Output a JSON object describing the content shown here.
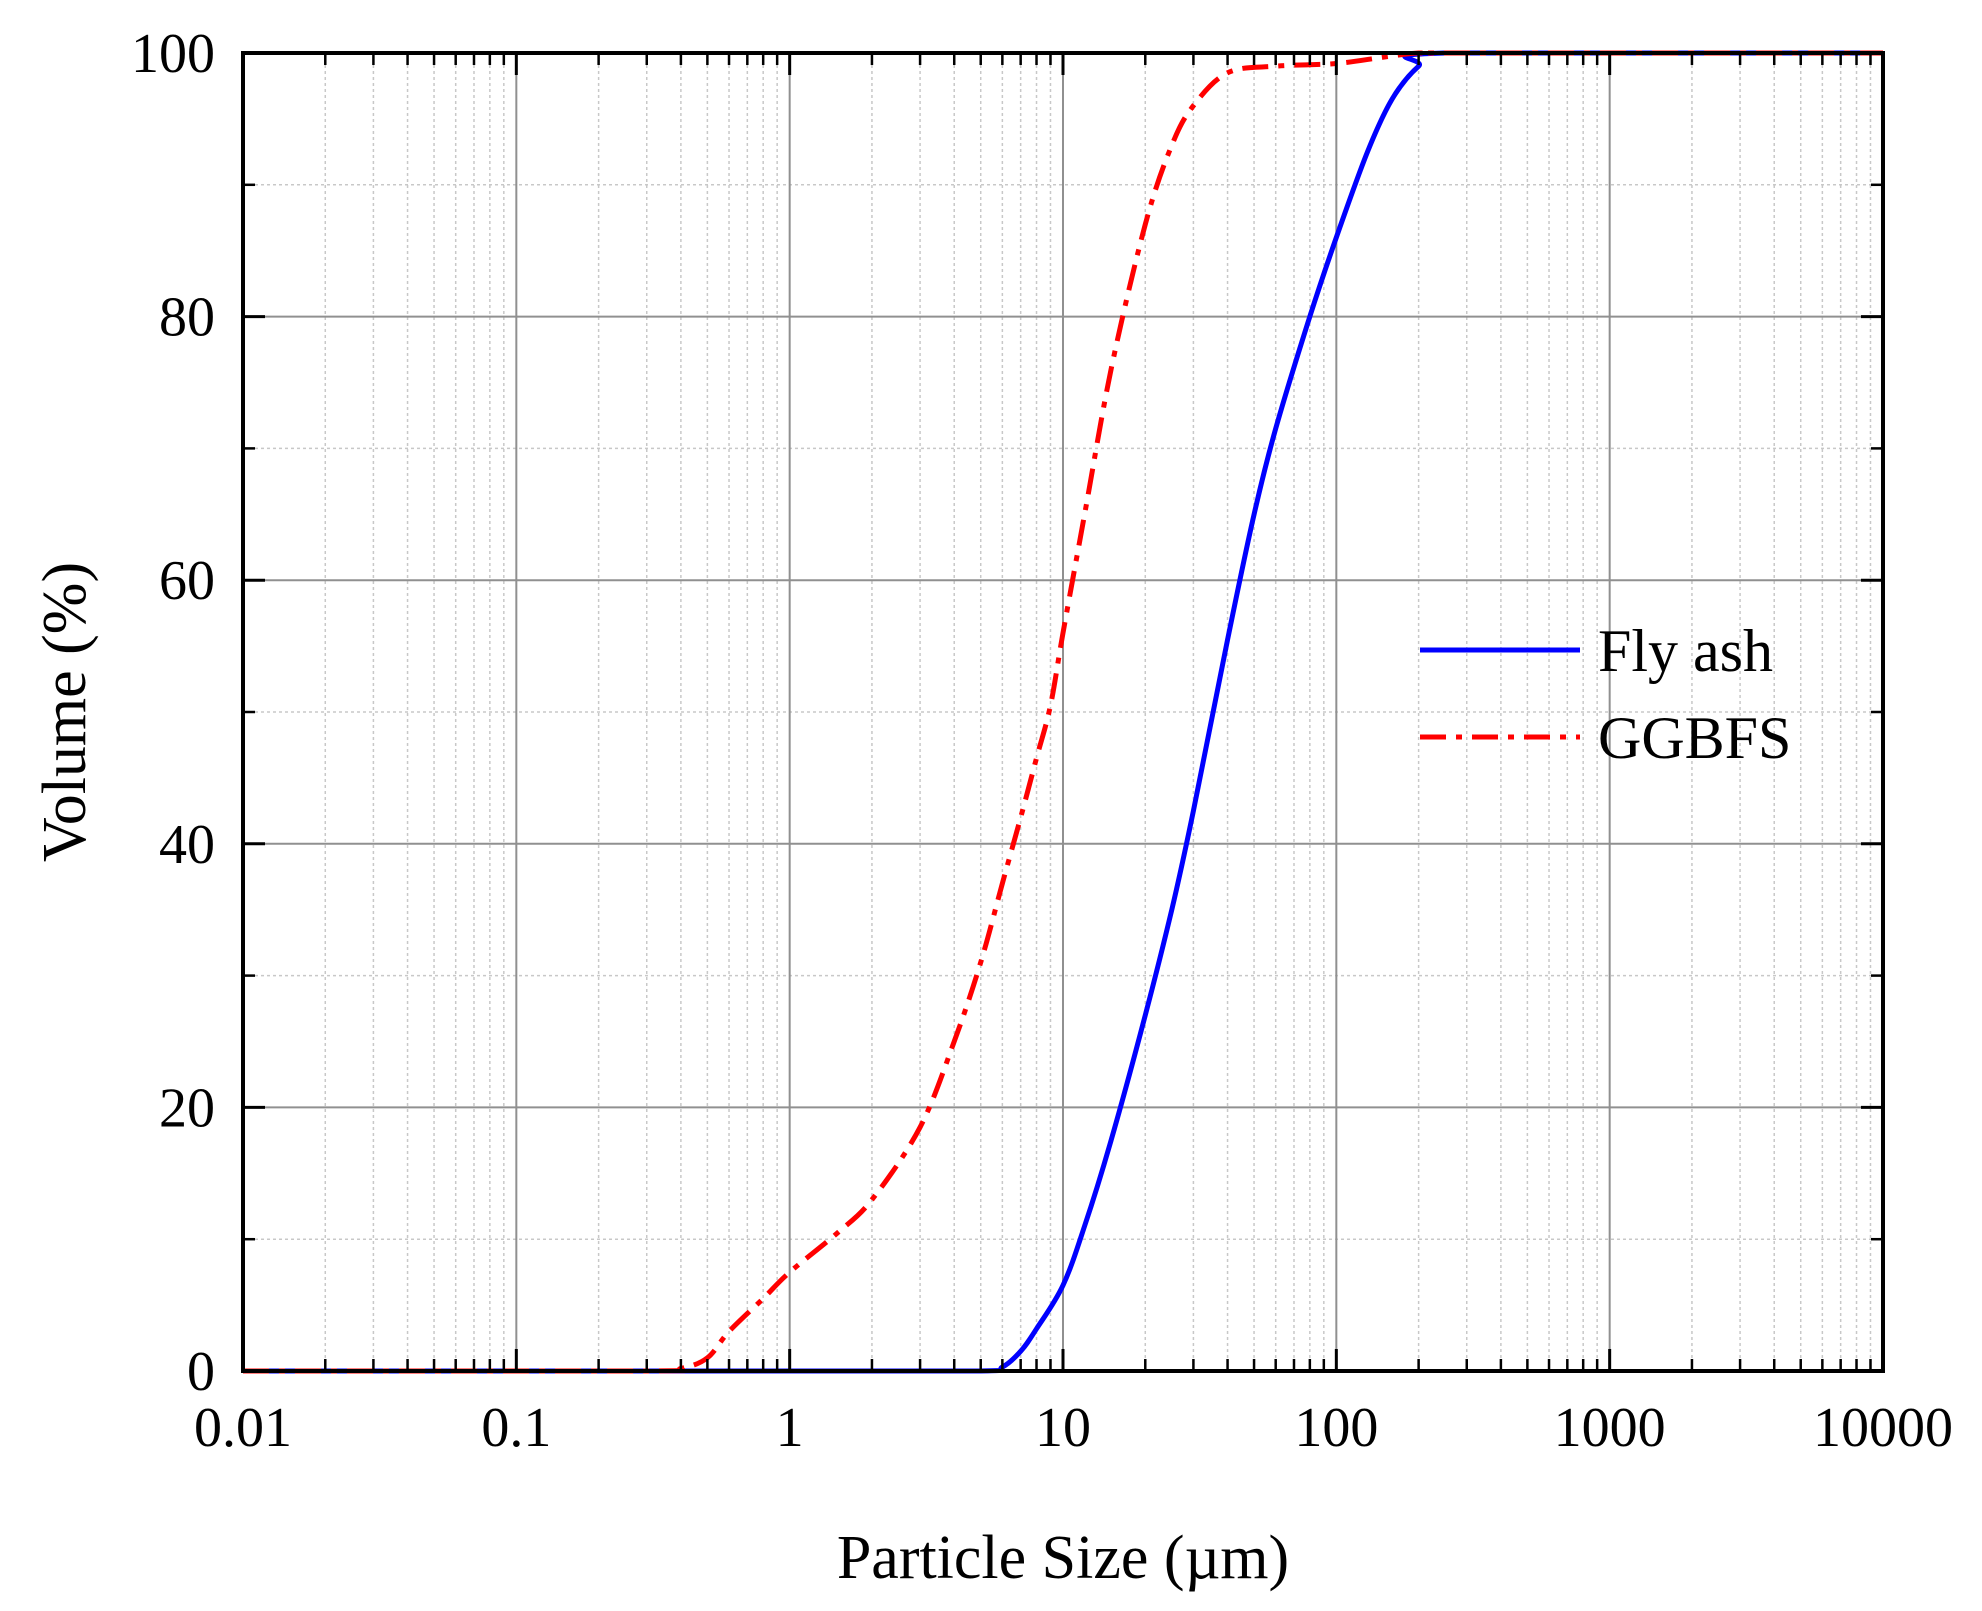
{
  "chart_data": {
    "type": "line",
    "title": "",
    "xlabel": "Particle Size (µm)",
    "ylabel": "Volume (%)",
    "xscale": "log",
    "xlim": [
      0.01,
      10000
    ],
    "ylim": [
      0,
      100
    ],
    "x_ticks": [
      0.01,
      0.1,
      1,
      10,
      100,
      1000,
      10000
    ],
    "x_tick_labels": [
      "0.01",
      "0.1",
      "1",
      "10",
      "100",
      "1000",
      "10000"
    ],
    "y_ticks": [
      0,
      20,
      40,
      60,
      80,
      100
    ],
    "y_tick_labels": [
      "0",
      "20",
      "40",
      "60",
      "80",
      "100"
    ],
    "grid": true,
    "legend_position": "center-right",
    "series": [
      {
        "name": "Fly ash",
        "color": "#0000ff",
        "style": "solid",
        "x": [
          0.01,
          1,
          5,
          6,
          7,
          8,
          10,
          12,
          15,
          20,
          25,
          30,
          40,
          50,
          60,
          80,
          100,
          130,
          160,
          200,
          250,
          10000
        ],
        "y": [
          0,
          0,
          0,
          0.3,
          1.5,
          3.2,
          6.5,
          11,
          17.5,
          27,
          35,
          42.5,
          55.5,
          65,
          71.5,
          80,
          86,
          92.5,
          96.5,
          99,
          100,
          100
        ]
      },
      {
        "name": "GGBFS",
        "color": "#ff0000",
        "style": "dashdot",
        "x": [
          0.01,
          0.3,
          0.4,
          0.5,
          0.6,
          0.8,
          1,
          1.5,
          2,
          3,
          4,
          5,
          6,
          7,
          8,
          9,
          10,
          12,
          15,
          20,
          25,
          30,
          40,
          60,
          100,
          150,
          200,
          300,
          10000
        ],
        "y": [
          0,
          0,
          0.2,
          1,
          3,
          5.5,
          7.5,
          10.5,
          13,
          18.5,
          25,
          31,
          37,
          42,
          46.5,
          50.5,
          56,
          65,
          76,
          87,
          93,
          96,
          98.5,
          99,
          99.2,
          99.7,
          100,
          100,
          100
        ]
      }
    ]
  }
}
